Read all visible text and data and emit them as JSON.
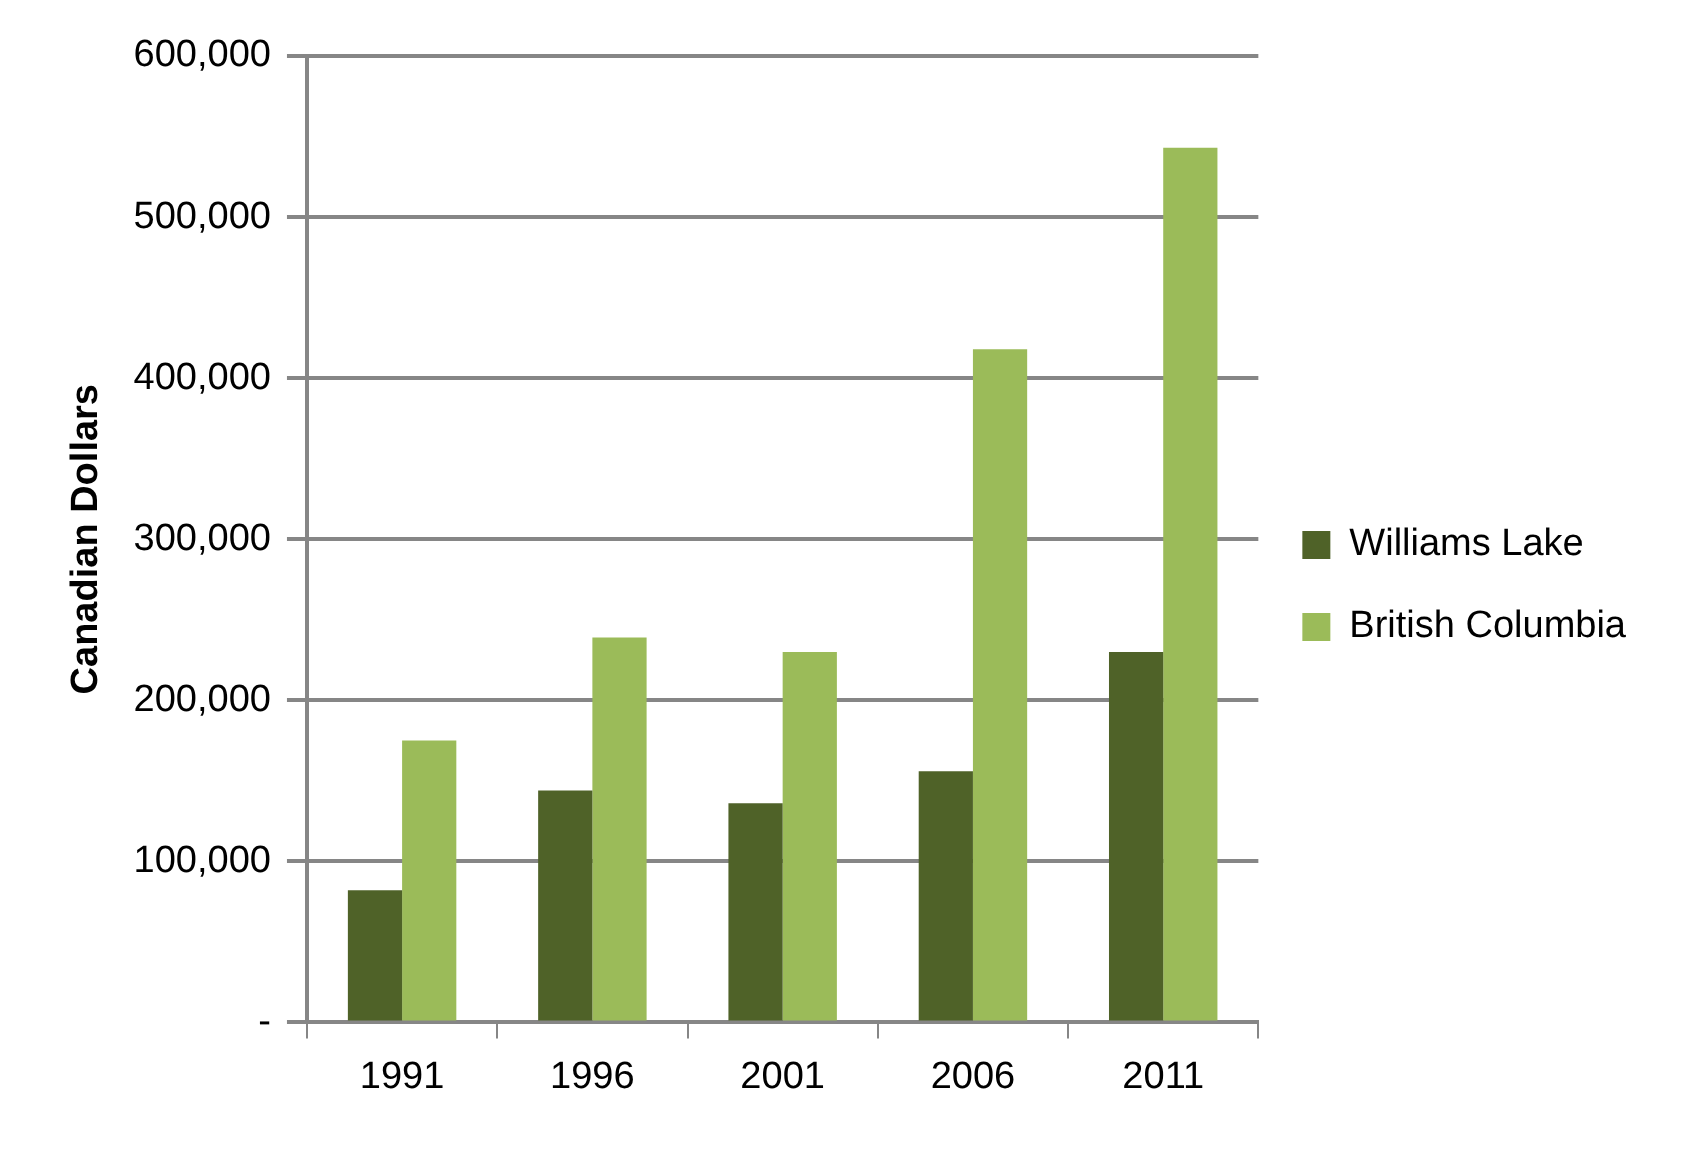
{
  "chart_data": {
    "type": "bar",
    "ylabel": "Canadian Dollars",
    "categories": [
      "1991",
      "1996",
      "2001",
      "2006",
      "2011"
    ],
    "series": [
      {
        "name": "Williams Lake",
        "color": "#4f6228",
        "values": [
          82000,
          144000,
          136000,
          156000,
          230000
        ]
      },
      {
        "name": "British Columbia",
        "color": "#9bbb59",
        "values": [
          175000,
          239000,
          230000,
          418000,
          543000
        ]
      }
    ],
    "ylim": [
      0,
      600000
    ],
    "yticks": [
      {
        "value": 0,
        "label": "-"
      },
      {
        "value": 100000,
        "label": "100,000"
      },
      {
        "value": 200000,
        "label": "200,000"
      },
      {
        "value": 300000,
        "label": "300,000"
      },
      {
        "value": 400000,
        "label": "400,000"
      },
      {
        "value": 500000,
        "label": "500,000"
      },
      {
        "value": 600000,
        "label": "600,000"
      }
    ],
    "grid": "y",
    "legend": "right"
  }
}
